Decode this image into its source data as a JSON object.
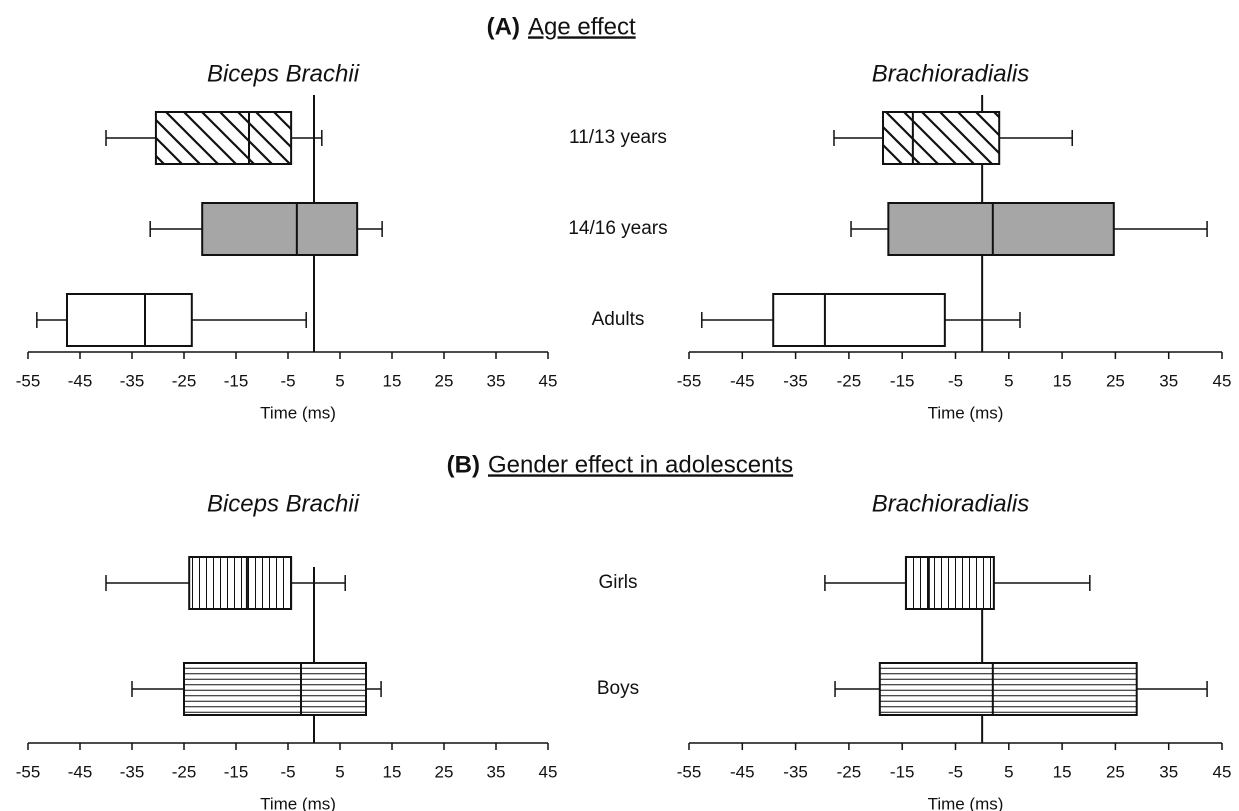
{
  "sections": [
    {
      "label": "(A)",
      "title": "Age effect",
      "categories": [
        "11/13 years",
        "14/16 years",
        "Adults"
      ]
    },
    {
      "label": "(B)",
      "title": "Gender effect in adolescents",
      "categories": [
        "Girls",
        "Boys"
      ]
    }
  ],
  "chart_data": [
    {
      "type": "box",
      "orientation": "horizontal",
      "title": "Biceps Brachii",
      "xlabel": "Time (ms)",
      "xlim": [
        -55,
        45
      ],
      "xticks": [
        -55,
        -45,
        -35,
        -25,
        -15,
        -5,
        5,
        15,
        25,
        35,
        45
      ],
      "boxes": [
        {
          "min": -40,
          "q1": -30.4,
          "median": -12.5,
          "q3": -4.4,
          "max": 1.5,
          "fill": "diagonal"
        },
        {
          "min": -31.5,
          "q1": -21.5,
          "median": -3.3,
          "q3": 8.3,
          "max": 13.1,
          "fill": "#a6a6a6"
        },
        {
          "min": -53.3,
          "q1": -47.5,
          "median": -32.5,
          "q3": -23.5,
          "max": -1.5,
          "fill": "#ffffff"
        }
      ]
    },
    {
      "type": "box",
      "orientation": "horizontal",
      "title": "Brachioradialis",
      "xlabel": "Time (ms)",
      "xlim": [
        -55,
        45
      ],
      "xticks": [
        -55,
        -45,
        -35,
        -25,
        -15,
        -5,
        5,
        15,
        25,
        35,
        45
      ],
      "boxes": [
        {
          "min": -27.8,
          "q1": -18.6,
          "median": -13,
          "q3": 3.2,
          "max": 16.9,
          "fill": "diagonal"
        },
        {
          "min": -24.6,
          "q1": -17.6,
          "median": 2,
          "q3": 24.7,
          "max": 42.2,
          "fill": "#a6a6a6"
        },
        {
          "min": -52.6,
          "q1": -39.2,
          "median": -29.5,
          "q3": -7,
          "max": 7.1,
          "fill": "#ffffff"
        }
      ]
    },
    {
      "type": "box",
      "orientation": "horizontal",
      "title": "Biceps Brachii",
      "xlabel": "Time (ms)",
      "xlim": [
        -55,
        45
      ],
      "xticks": [
        -55,
        -45,
        -35,
        -25,
        -15,
        -5,
        5,
        15,
        25,
        35,
        45
      ],
      "boxes": [
        {
          "min": -40,
          "q1": -24,
          "median": -12.9,
          "q3": -4.4,
          "max": 6,
          "fill": "vertical"
        },
        {
          "min": -35,
          "q1": -25,
          "median": -2.5,
          "q3": 10,
          "max": 12.9,
          "fill": "horizontal"
        }
      ]
    },
    {
      "type": "box",
      "orientation": "horizontal",
      "title": "Brachioradialis",
      "xlabel": "Time (ms)",
      "xlim": [
        -55,
        45
      ],
      "xticks": [
        -55,
        -45,
        -35,
        -25,
        -15,
        -5,
        5,
        15,
        25,
        35,
        45
      ],
      "boxes": [
        {
          "min": -29.5,
          "q1": -14.3,
          "median": -10,
          "q3": 2.2,
          "max": 20.2,
          "fill": "vertical"
        },
        {
          "min": -27.6,
          "q1": -19.2,
          "median": 2,
          "q3": 29,
          "max": 42.2,
          "fill": "horizontal"
        }
      ]
    }
  ]
}
